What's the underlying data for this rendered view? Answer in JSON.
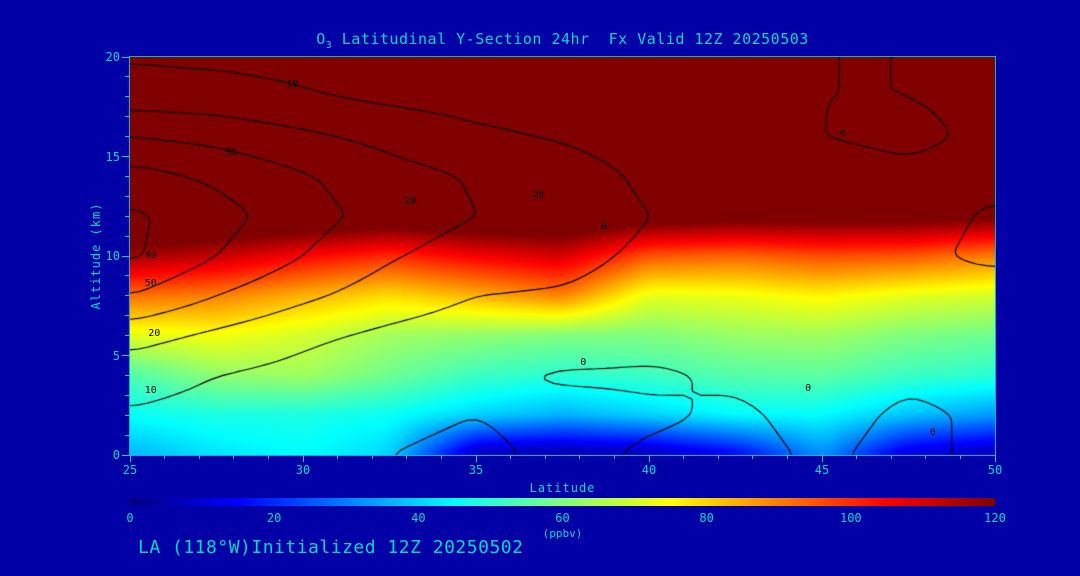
{
  "colors": {
    "background": "#0000a6",
    "text": "#00d9c9",
    "contour": "#000000"
  },
  "title": {
    "part1": "O",
    "subscript": "3",
    "part2": " Latitudinal Y-Section 24hr  Fx Valid 12Z 20250503"
  },
  "footer": {
    "text": "LA (118°W)Initialized 12Z 20250502"
  },
  "axes": {
    "x": {
      "label": "Latitude",
      "min": 25,
      "max": 50,
      "major_ticks": [
        25,
        30,
        35,
        40,
        45,
        50
      ],
      "minor_step": 1
    },
    "y": {
      "label": "Altitude (km)",
      "min": 0,
      "max": 20,
      "major_ticks": [
        0,
        5,
        10,
        15,
        20
      ],
      "minor_step": 1
    }
  },
  "colorbar": {
    "label": "(ppbv)",
    "min": 0,
    "max": 120,
    "ticks": [
      0,
      20,
      40,
      60,
      80,
      100,
      120
    ]
  },
  "chart_data": {
    "type": "heatmap",
    "title": "O3 Latitudinal Y-Section 24hr Fx Valid 12Z 20250503",
    "xlabel": "Latitude",
    "ylabel": "Altitude (km)",
    "units": "ppbv",
    "colormap": "jet",
    "xlim": [
      25,
      50
    ],
    "ylim": [
      0,
      20
    ],
    "color_scale": [
      0,
      120
    ],
    "x_latitude": [
      25,
      27.5,
      30,
      32.5,
      35,
      37.5,
      40,
      42.5,
      45,
      47.5,
      50
    ],
    "y_altitude_km": [
      0,
      2,
      4,
      6,
      8,
      10,
      12,
      14,
      16,
      18,
      20
    ],
    "ozone_ppbv": [
      [
        36,
        42,
        45,
        40,
        6,
        4,
        6,
        14,
        32,
        10,
        6
      ],
      [
        46,
        48,
        48,
        46,
        40,
        36,
        40,
        45,
        45,
        38,
        33
      ],
      [
        54,
        62,
        64,
        58,
        52,
        50,
        52,
        55,
        56,
        52,
        50
      ],
      [
        72,
        74,
        70,
        64,
        62,
        60,
        60,
        63,
        64,
        60,
        58
      ],
      [
        92,
        90,
        84,
        79,
        84,
        90,
        72,
        73,
        76,
        72,
        70
      ],
      [
        116,
        112,
        105,
        100,
        106,
        110,
        95,
        93,
        96,
        95,
        90
      ],
      [
        132,
        132,
        130,
        128,
        130,
        130,
        126,
        124,
        124,
        124,
        122
      ],
      [
        135,
        135,
        135,
        135,
        135,
        135,
        135,
        135,
        135,
        135,
        135
      ],
      [
        135,
        135,
        135,
        135,
        135,
        135,
        135,
        135,
        135,
        135,
        135
      ],
      [
        135,
        135,
        135,
        135,
        135,
        135,
        135,
        135,
        135,
        135,
        135
      ],
      [
        135,
        135,
        135,
        135,
        135,
        135,
        135,
        135,
        135,
        135,
        135
      ]
    ],
    "contour_overlay": {
      "levels": [
        0,
        10,
        20,
        30,
        40,
        50
      ],
      "values": [
        [
          8,
          5,
          2,
          0,
          -2,
          2,
          -1,
          -2,
          1,
          -2,
          2
        ],
        [
          9,
          7,
          4,
          2,
          0,
          3,
          1,
          -1,
          2,
          -1,
          1
        ],
        [
          14,
          10,
          7,
          4,
          2,
          -1,
          -1,
          1,
          3,
          1,
          2
        ],
        [
          24,
          18,
          12,
          8,
          5,
          6,
          3,
          2,
          4,
          2,
          3
        ],
        [
          40,
          30,
          22,
          15,
          10,
          9,
          6,
          4,
          6,
          3,
          5
        ],
        [
          52,
          40,
          30,
          21,
          15,
          13,
          8,
          5,
          7,
          2,
          -2
        ],
        [
          52,
          44,
          34,
          26,
          20,
          17,
          10,
          6,
          5,
          3,
          -1
        ],
        [
          44,
          38,
          31,
          24,
          19,
          15,
          8,
          4,
          2,
          1,
          2
        ],
        [
          30,
          27,
          22,
          17,
          12,
          9,
          5,
          2,
          0,
          -1,
          1
        ],
        [
          15,
          14,
          11,
          8,
          6,
          5,
          3,
          1,
          0,
          0,
          1
        ],
        [
          9,
          8,
          7,
          5,
          4,
          3,
          2,
          1,
          0,
          0,
          0
        ]
      ],
      "labels": [
        {
          "text": "10",
          "lat": 29.7,
          "alt": 18.6
        },
        {
          "text": "30",
          "lat": 27.9,
          "alt": 15.2
        },
        {
          "text": "20",
          "lat": 33.1,
          "alt": 12.7
        },
        {
          "text": "20",
          "lat": 36.8,
          "alt": 13.0
        },
        {
          "text": "40",
          "lat": 25.6,
          "alt": 10.0
        },
        {
          "text": "50",
          "lat": 25.6,
          "alt": 8.6
        },
        {
          "text": "20",
          "lat": 25.7,
          "alt": 6.1
        },
        {
          "text": "10",
          "lat": 25.6,
          "alt": 3.2
        },
        {
          "text": "0",
          "lat": 38.7,
          "alt": 11.4
        },
        {
          "text": "0",
          "lat": 45.6,
          "alt": 16.1
        },
        {
          "text": "0",
          "lat": 38.1,
          "alt": 4.6
        },
        {
          "text": "0",
          "lat": 44.6,
          "alt": 3.3
        },
        {
          "text": "0",
          "lat": 48.2,
          "alt": 1.1
        }
      ]
    }
  }
}
